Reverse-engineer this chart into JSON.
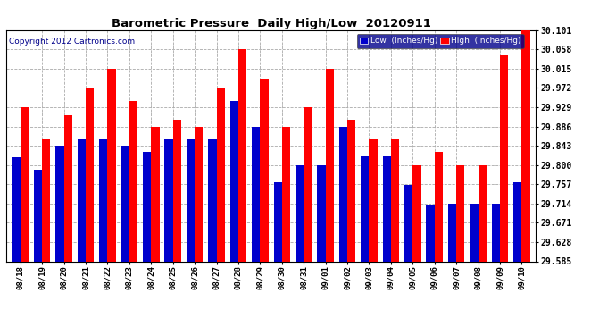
{
  "title": "Barometric Pressure  Daily High/Low  20120911",
  "copyright": "Copyright 2012 Cartronics.com",
  "dates": [
    "08/18",
    "08/19",
    "08/20",
    "08/21",
    "08/22",
    "08/23",
    "08/24",
    "08/25",
    "08/26",
    "08/27",
    "08/28",
    "08/29",
    "08/30",
    "08/31",
    "09/01",
    "09/02",
    "09/03",
    "09/04",
    "09/05",
    "09/06",
    "09/07",
    "09/08",
    "09/09",
    "09/10"
  ],
  "low_values": [
    29.818,
    29.79,
    29.843,
    29.858,
    29.858,
    29.843,
    29.829,
    29.858,
    29.858,
    29.858,
    29.943,
    29.886,
    29.762,
    29.8,
    29.8,
    29.886,
    29.82,
    29.82,
    29.756,
    29.712,
    29.714,
    29.714,
    29.714,
    29.762
  ],
  "high_values": [
    29.929,
    29.858,
    29.912,
    29.972,
    30.015,
    29.943,
    29.886,
    29.901,
    29.886,
    29.972,
    30.058,
    29.993,
    29.886,
    29.929,
    30.015,
    29.901,
    29.858,
    29.858,
    29.8,
    29.829,
    29.8,
    29.8,
    30.044,
    30.101
  ],
  "ylim_min": 29.585,
  "ylim_max": 30.101,
  "yticks": [
    29.585,
    29.628,
    29.671,
    29.714,
    29.757,
    29.8,
    29.843,
    29.886,
    29.929,
    29.972,
    30.015,
    30.058,
    30.101
  ],
  "low_color": "#0000cc",
  "high_color": "#ff0000",
  "bg_color": "#ffffff",
  "grid_color": "#aaaaaa",
  "bar_width": 0.38,
  "legend_low_label": "Low  (Inches/Hg)",
  "legend_high_label": "High  (Inches/Hg)"
}
